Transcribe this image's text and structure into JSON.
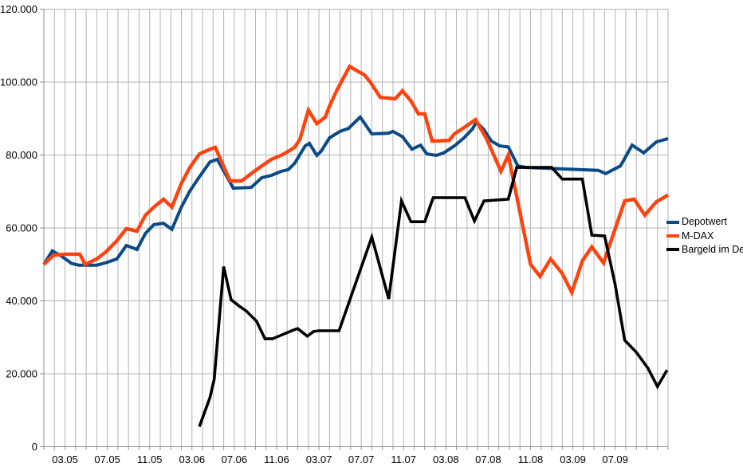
{
  "chart_data": {
    "type": "line",
    "title": "",
    "background": "#ffffff",
    "grid_color": "#b3b3b3",
    "axis_color": "#8f8f8f",
    "text_color": "#000000",
    "x_axis": {
      "unit": "month",
      "months_total": 59,
      "gridline_every_months": 1,
      "tick_labels": [
        "03.05",
        "07.05",
        "11.05",
        "03.06",
        "07.06",
        "11.06",
        "03.07",
        "07.07",
        "11.07",
        "03.08",
        "07.08",
        "11.08",
        "03.09",
        "07.09"
      ],
      "tick_label_month_indices": [
        2,
        6,
        10,
        14,
        18,
        22,
        26,
        30,
        34,
        38,
        42,
        46,
        50,
        54
      ]
    },
    "y_axis": {
      "min": 0,
      "max": 120000,
      "step": 20000,
      "tick_labels": [
        "0",
        "20.000",
        "40.000",
        "60.000",
        "80.000",
        "100.000",
        "120.000"
      ]
    },
    "legend": {
      "position": "right"
    },
    "series": [
      {
        "name": "Depotwert",
        "color": "#0a4a86",
        "points": [
          [
            0,
            50000
          ],
          [
            0.8,
            53700
          ],
          [
            1.7,
            52200
          ],
          [
            2.6,
            50300
          ],
          [
            3.3,
            49800
          ],
          [
            5,
            49800
          ],
          [
            5.9,
            50500
          ],
          [
            6.9,
            51500
          ],
          [
            7.8,
            55200
          ],
          [
            8.8,
            54100
          ],
          [
            9.6,
            58500
          ],
          [
            10.4,
            60900
          ],
          [
            11.3,
            61300
          ],
          [
            12.1,
            59600
          ],
          [
            13,
            65700
          ],
          [
            13.8,
            70100
          ],
          [
            14.7,
            74000
          ],
          [
            15.7,
            78100
          ],
          [
            16.4,
            78800
          ],
          [
            17.9,
            70900
          ],
          [
            19.6,
            71100
          ],
          [
            20.6,
            73800
          ],
          [
            21.5,
            74400
          ],
          [
            22.4,
            75500
          ],
          [
            23.1,
            76000
          ],
          [
            23.7,
            77700
          ],
          [
            24.7,
            82500
          ],
          [
            25.1,
            83200
          ],
          [
            25.8,
            79900
          ],
          [
            26.2,
            81000
          ],
          [
            27,
            84700
          ],
          [
            28,
            86500
          ],
          [
            28.8,
            87300
          ],
          [
            29.9,
            90400
          ],
          [
            31,
            85800
          ],
          [
            32.6,
            86000
          ],
          [
            33,
            86500
          ],
          [
            33.9,
            85000
          ],
          [
            34.8,
            81600
          ],
          [
            35.6,
            82700
          ],
          [
            36.2,
            80300
          ],
          [
            37.1,
            79900
          ],
          [
            37.8,
            80600
          ],
          [
            38.8,
            82500
          ],
          [
            39.7,
            84700
          ],
          [
            40.5,
            87100
          ],
          [
            40.9,
            89100
          ],
          [
            41.6,
            86900
          ],
          [
            42.3,
            83800
          ],
          [
            43.1,
            82500
          ],
          [
            43.9,
            82200
          ],
          [
            44.8,
            77000
          ],
          [
            45.6,
            76600
          ],
          [
            52.4,
            75800
          ],
          [
            53.1,
            74900
          ],
          [
            54.5,
            77000
          ],
          [
            55.6,
            82700
          ],
          [
            56.7,
            80600
          ],
          [
            57.9,
            83600
          ],
          [
            59,
            84500
          ]
        ]
      },
      {
        "name": "M-DAX",
        "color": "#ff420e",
        "points": [
          [
            0,
            50000
          ],
          [
            0.9,
            52500
          ],
          [
            2,
            52800
          ],
          [
            3.4,
            52800
          ],
          [
            3.9,
            50000
          ],
          [
            5,
            51500
          ],
          [
            5.9,
            53500
          ],
          [
            6.9,
            56500
          ],
          [
            7.8,
            59800
          ],
          [
            8.8,
            59100
          ],
          [
            9.6,
            63500
          ],
          [
            10.4,
            65700
          ],
          [
            11.3,
            67900
          ],
          [
            12.1,
            65700
          ],
          [
            13,
            72200
          ],
          [
            13.8,
            76600
          ],
          [
            14.7,
            80300
          ],
          [
            15.7,
            81600
          ],
          [
            16.2,
            82100
          ],
          [
            17.6,
            72900
          ],
          [
            18.7,
            72900
          ],
          [
            19.6,
            74900
          ],
          [
            20.6,
            77000
          ],
          [
            21.5,
            78800
          ],
          [
            22.4,
            79900
          ],
          [
            23.1,
            81000
          ],
          [
            23.7,
            82100
          ],
          [
            24.2,
            84300
          ],
          [
            25,
            92300
          ],
          [
            25.8,
            88600
          ],
          [
            26.6,
            90400
          ],
          [
            27,
            93400
          ],
          [
            27.7,
            97800
          ],
          [
            28.9,
            104300
          ],
          [
            29.7,
            102900
          ],
          [
            30.3,
            102000
          ],
          [
            30.9,
            99800
          ],
          [
            31.8,
            95800
          ],
          [
            33.2,
            95400
          ],
          [
            33.9,
            97600
          ],
          [
            34.7,
            94800
          ],
          [
            35.4,
            91300
          ],
          [
            36,
            91300
          ],
          [
            36.7,
            83800
          ],
          [
            38.3,
            84000
          ],
          [
            38.8,
            85800
          ],
          [
            39.7,
            87500
          ],
          [
            40.8,
            89700
          ],
          [
            41.8,
            84700
          ],
          [
            42.6,
            79500
          ],
          [
            43.2,
            75500
          ],
          [
            43.9,
            80000
          ],
          [
            46,
            50000
          ],
          [
            46.9,
            46700
          ],
          [
            47.9,
            51500
          ],
          [
            49,
            47500
          ],
          [
            49.9,
            42300
          ],
          [
            50.9,
            51000
          ],
          [
            51.8,
            54800
          ],
          [
            52.9,
            50400
          ],
          [
            54.9,
            67400
          ],
          [
            55.8,
            67900
          ],
          [
            56.8,
            63500
          ],
          [
            57.9,
            67200
          ],
          [
            59,
            69000
          ]
        ]
      },
      {
        "name": "Bargeld im Depot",
        "color": "#000000",
        "points": [
          [
            14.7,
            5500
          ],
          [
            15.7,
            13500
          ],
          [
            16.1,
            18500
          ],
          [
            17,
            49400
          ],
          [
            17.7,
            40300
          ],
          [
            18.5,
            38500
          ],
          [
            19.1,
            37300
          ],
          [
            19.8,
            35300
          ],
          [
            20.1,
            34400
          ],
          [
            20.9,
            29600
          ],
          [
            21.6,
            29600
          ],
          [
            22.6,
            30800
          ],
          [
            23.6,
            32000
          ],
          [
            24,
            32400
          ],
          [
            24.9,
            30300
          ],
          [
            25.5,
            31600
          ],
          [
            26,
            31800
          ],
          [
            27.9,
            31800
          ],
          [
            31,
            57500
          ],
          [
            32.6,
            40500
          ],
          [
            33.8,
            67400
          ],
          [
            34.7,
            61700
          ],
          [
            36,
            61700
          ],
          [
            36.8,
            68300
          ],
          [
            39.8,
            68300
          ],
          [
            40.7,
            61900
          ],
          [
            41.6,
            67400
          ],
          [
            43.9,
            67900
          ],
          [
            44.7,
            76600
          ],
          [
            48,
            76600
          ],
          [
            49,
            73400
          ],
          [
            50.9,
            73400
          ],
          [
            51.8,
            58000
          ],
          [
            53,
            57800
          ],
          [
            54,
            44500
          ],
          [
            54.9,
            29200
          ],
          [
            56,
            25900
          ],
          [
            57.1,
            21500
          ],
          [
            58,
            16500
          ],
          [
            58.9,
            21000
          ]
        ]
      }
    ]
  }
}
